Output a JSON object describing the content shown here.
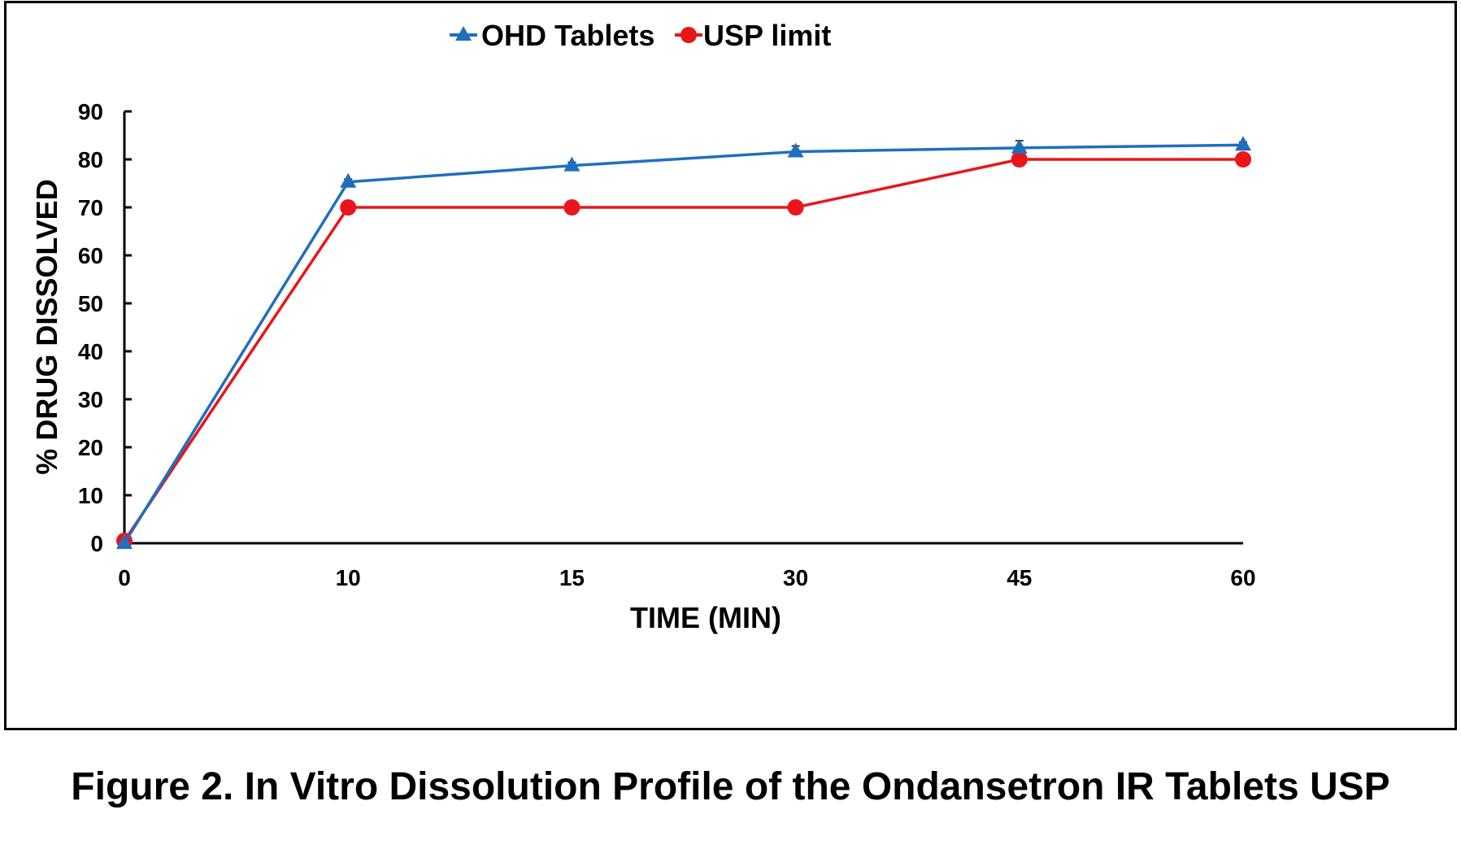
{
  "chart_data": {
    "type": "line",
    "categories": [
      "0",
      "10",
      "15",
      "30",
      "45",
      "60"
    ],
    "series": [
      {
        "name": "OHD Tablets",
        "values": [
          0,
          75.3,
          78.7,
          81.6,
          82.4,
          83.0
        ],
        "color": "#1f6fbf",
        "marker": "triangle",
        "error": [
          0,
          0.6,
          0.7,
          1.2,
          1.5,
          0.6
        ]
      },
      {
        "name": "USP limit",
        "values": [
          0.5,
          70,
          70,
          70,
          80,
          80
        ],
        "color": "#e8161a",
        "marker": "circle"
      }
    ],
    "xlabel": "TIME (MIN)",
    "ylabel": "% DRUG DISSOLVED",
    "ylim": [
      0,
      90
    ],
    "yticks": [
      "0",
      "10",
      "20",
      "30",
      "40",
      "50",
      "60",
      "70",
      "80",
      "90"
    ],
    "grid": false,
    "legend_position": "top-center"
  },
  "caption": "Figure 2. In Vitro Dissolution Profile of the Ondansetron IR Tablets USP"
}
